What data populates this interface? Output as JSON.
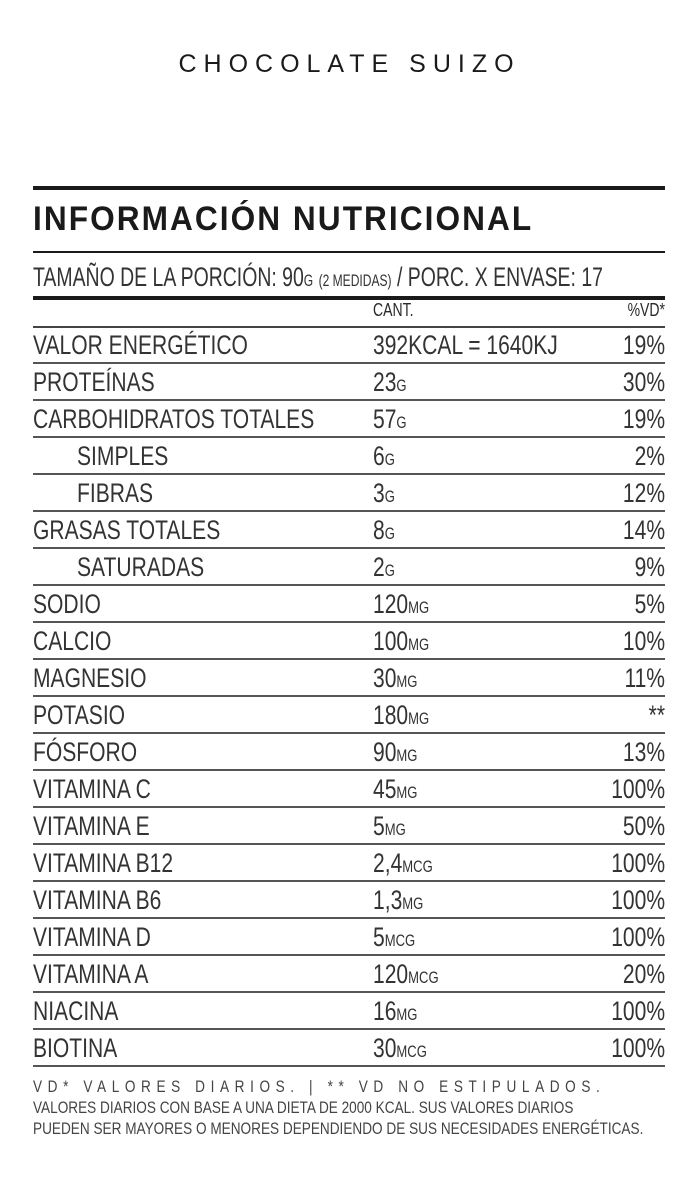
{
  "product_title": "CHOCOLATE SUIZO",
  "heading": "INFORMACIÓN NUTRICIONAL",
  "portion": {
    "prefix": "TAMAÑO DE LA PORCIÓN: 90",
    "unit": "G",
    "medidas": "(2 MEDIDAS)",
    "suffix": " / PORC. X ENVASE: 17"
  },
  "columns": {
    "amount": "CANT.",
    "vd": "%VD*"
  },
  "rows": [
    {
      "name": "VALOR ENERGÉTICO",
      "value": "392KCAL = 1640KJ",
      "unit": "",
      "vd": "19%",
      "indent": false
    },
    {
      "name": "PROTEÍNAS",
      "value": "23",
      "unit": "G",
      "vd": "30%",
      "indent": false
    },
    {
      "name": "CARBOHIDRATOS  TOTALES",
      "value": "57",
      "unit": "G",
      "vd": "19%",
      "indent": false
    },
    {
      "name": "SIMPLES",
      "value": "6",
      "unit": "G",
      "vd": "2%",
      "indent": true
    },
    {
      "name": "FIBRAS",
      "value": "3",
      "unit": "G",
      "vd": "12%",
      "indent": true
    },
    {
      "name": "GRASAS TOTALES",
      "value": "8",
      "unit": "G",
      "vd": "14%",
      "indent": false
    },
    {
      "name": "SATURADAS",
      "value": "2",
      "unit": "G",
      "vd": "9%",
      "indent": true
    },
    {
      "name": "SODIO",
      "value": "120",
      "unit": "MG",
      "vd": "5%",
      "indent": false
    },
    {
      "name": "CALCIO",
      "value": "100",
      "unit": "MG",
      "vd": "10%",
      "indent": false
    },
    {
      "name": "MAGNESIO",
      "value": "30",
      "unit": "MG",
      "vd": "11%",
      "indent": false
    },
    {
      "name": "POTASIO",
      "value": "180",
      "unit": "MG",
      "vd": "**",
      "indent": false
    },
    {
      "name": "FÓSFORO",
      "value": "90",
      "unit": "MG",
      "vd": "13%",
      "indent": false
    },
    {
      "name": "VITAMINA C",
      "value": "45",
      "unit": "MG",
      "vd": "100%",
      "indent": false
    },
    {
      "name": "VITAMINA E",
      "value": "5",
      "unit": "MG",
      "vd": "50%",
      "indent": false
    },
    {
      "name": "VITAMINA B12",
      "value": "2,4",
      "unit": "MCG",
      "vd": "100%",
      "indent": false
    },
    {
      "name": "VITAMINA B6",
      "value": "1,3",
      "unit": "MG",
      "vd": "100%",
      "indent": false
    },
    {
      "name": "VITAMINA D",
      "value": "5",
      "unit": "MCG",
      "vd": "100%",
      "indent": false
    },
    {
      "name": "VITAMINA A",
      "value": "120",
      "unit": "MCG",
      "vd": "20%",
      "indent": false
    },
    {
      "name": "NIACINA",
      "value": "16",
      "unit": "MG",
      "vd": "100%",
      "indent": false
    },
    {
      "name": "BIOTINA",
      "value": "30",
      "unit": "MCG",
      "vd": "100%",
      "indent": false
    }
  ],
  "footer": [
    "VD* VALORES DIARIOS.  |  ** VD NO ESTIPULADOS.",
    "VALORES DIARIOS CON BASE A UNA DIETA DE 2000 KCAL. SUS VALORES DIARIOS",
    "PUEDEN SER MAYORES O MENORES DEPENDIENDO DE SUS NECESIDADES ENERGÉTICAS."
  ]
}
